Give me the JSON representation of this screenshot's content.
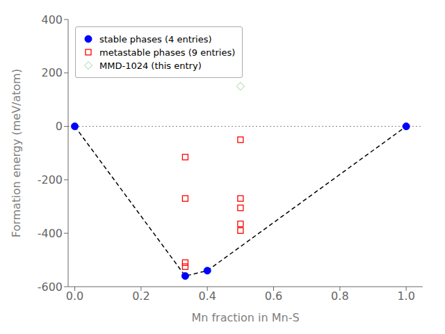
{
  "chart_data": {
    "type": "scatter",
    "title": "",
    "xlabel": "Mn fraction in Mn-S",
    "ylabel": "Formation energy (meV/atom)",
    "xlim": [
      -0.02,
      1.05
    ],
    "ylim": [
      -600,
      400
    ],
    "xticks": [
      {
        "value": 0.0,
        "label": "0.0"
      },
      0.2,
      0.4,
      0.6,
      0.8,
      {
        "value": 1.0,
        "label": "1.0"
      }
    ],
    "yticks": [
      -600,
      -400,
      -200,
      0,
      200,
      400
    ],
    "grid": false,
    "legend": "upper left",
    "hline": {
      "y": 0.0,
      "color": "#808080",
      "line_style": "dotted"
    },
    "series": [
      {
        "type": "line",
        "color": "#000000",
        "line_style": "dashed",
        "x": [
          0.0,
          0.3333,
          0.4,
          1.0
        ],
        "values": [
          0.0,
          -560.0,
          -540.0,
          0.0
        ]
      },
      {
        "type": "scatter",
        "name": "stable phases (4 entries)",
        "color": "#0000ff",
        "marker": "filled_circle",
        "x": [
          0.0,
          0.3333,
          0.4,
          1.0
        ],
        "values": [
          0.0,
          -560.0,
          -540.0,
          0.0
        ]
      },
      {
        "type": "scatter",
        "name": "metastable phases (9 entries)",
        "color": "#ff0000",
        "marker": "open_square",
        "x": [
          0.3333,
          0.3333,
          0.3333,
          0.3333,
          0.5,
          0.5,
          0.5,
          0.5,
          0.5
        ],
        "values": [
          -510.0,
          -525.0,
          -115.0,
          -270.0,
          -50.0,
          -270.0,
          -305.0,
          -365.0,
          -390.0
        ]
      },
      {
        "type": "scatter",
        "name": "MMD-1024 (this entry)",
        "color": "#c8e6c8",
        "marker": "open_diamond",
        "x": [
          0.5
        ],
        "values": [
          150.0
        ]
      }
    ]
  }
}
